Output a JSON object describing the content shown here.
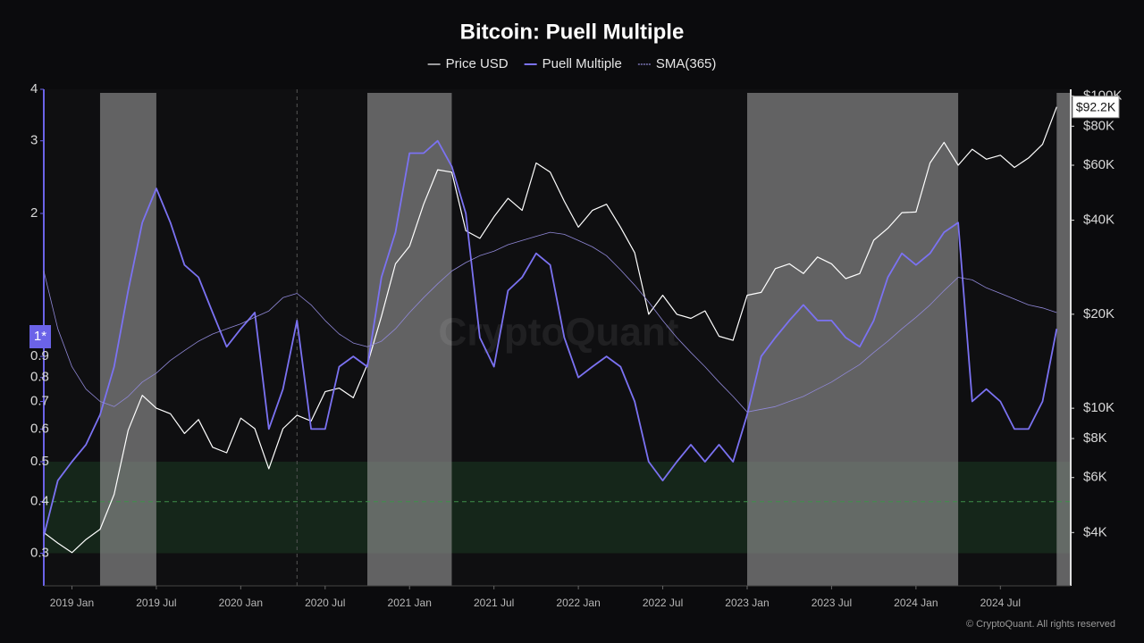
{
  "chart_data": {
    "type": "line",
    "title": "Bitcoin: Puell Multiple",
    "watermark": "CryptoQuant",
    "copyright": "© CryptoQuant. All rights reserved",
    "x": [
      "2018-11",
      "2018-12",
      "2019-01",
      "2019-02",
      "2019-03",
      "2019-04",
      "2019-05",
      "2019-06",
      "2019-07",
      "2019-08",
      "2019-09",
      "2019-10",
      "2019-11",
      "2019-12",
      "2020-01",
      "2020-02",
      "2020-03",
      "2020-04",
      "2020-05",
      "2020-06",
      "2020-07",
      "2020-08",
      "2020-09",
      "2020-10",
      "2020-11",
      "2020-12",
      "2021-01",
      "2021-02",
      "2021-03",
      "2021-04",
      "2021-05",
      "2021-06",
      "2021-07",
      "2021-08",
      "2021-09",
      "2021-10",
      "2021-11",
      "2021-12",
      "2022-01",
      "2022-02",
      "2022-03",
      "2022-04",
      "2022-05",
      "2022-06",
      "2022-07",
      "2022-08",
      "2022-09",
      "2022-10",
      "2022-11",
      "2022-12",
      "2023-01",
      "2023-02",
      "2023-03",
      "2023-04",
      "2023-05",
      "2023-06",
      "2023-07",
      "2023-08",
      "2023-09",
      "2023-10",
      "2023-11",
      "2023-12",
      "2024-01",
      "2024-02",
      "2024-03",
      "2024-04",
      "2024-05",
      "2024-06",
      "2024-07",
      "2024-08",
      "2024-09",
      "2024-10",
      "2024-11"
    ],
    "xlim": [
      "2018-11",
      "2024-12"
    ],
    "xticks": [
      {
        "value": "2019-01",
        "label": "2019 Jan"
      },
      {
        "value": "2019-07",
        "label": "2019 Jul"
      },
      {
        "value": "2020-01",
        "label": "2020 Jan"
      },
      {
        "value": "2020-07",
        "label": "2020 Jul"
      },
      {
        "value": "2021-01",
        "label": "2021 Jan"
      },
      {
        "value": "2021-07",
        "label": "2021 Jul"
      },
      {
        "value": "2022-01",
        "label": "2022 Jan"
      },
      {
        "value": "2022-07",
        "label": "2022 Jul"
      },
      {
        "value": "2023-01",
        "label": "2023 Jan"
      },
      {
        "value": "2023-07",
        "label": "2023 Jul"
      },
      {
        "value": "2024-01",
        "label": "2024 Jan"
      },
      {
        "value": "2024-07",
        "label": "2024 Jul"
      }
    ],
    "ylim": [
      0.25,
      4
    ],
    "yticks": [
      0.3,
      0.4,
      0.5,
      0.6,
      0.7,
      0.8,
      0.9,
      2,
      3,
      4
    ],
    "y_scale": "log",
    "y_marker": {
      "value": 1,
      "label": "1*"
    },
    "y2lim": [
      2700,
      105000
    ],
    "y2_scale": "log",
    "y2ticks": [
      {
        "value": 4000,
        "label": "$4K"
      },
      {
        "value": 6000,
        "label": "$6K"
      },
      {
        "value": 8000,
        "label": "$8K"
      },
      {
        "value": 10000,
        "label": "$10K"
      },
      {
        "value": 20000,
        "label": "$20K"
      },
      {
        "value": 40000,
        "label": "$40K"
      },
      {
        "value": 60000,
        "label": "$60K"
      },
      {
        "value": 80000,
        "label": "$80K"
      },
      {
        "value": 100000,
        "label": "$100K"
      }
    ],
    "zone": [
      0.3,
      0.5
    ],
    "zone_line": 0.4,
    "shaded_ranges": [
      [
        "2019-03",
        "2019-07"
      ],
      [
        "2020-10",
        "2021-04"
      ],
      [
        "2023-01",
        "2024-04"
      ],
      [
        "2024-11",
        "2024-12"
      ]
    ],
    "event_lines": [
      "2020-05"
    ],
    "series": [
      {
        "name": "Price USD",
        "color": "#ffffff",
        "axis": "y2",
        "values": [
          4000,
          3700,
          3450,
          3800,
          4100,
          5300,
          8500,
          11000,
          10000,
          9600,
          8300,
          9200,
          7500,
          7200,
          9300,
          8600,
          6400,
          8600,
          9500,
          9100,
          11300,
          11600,
          10800,
          13800,
          19700,
          29000,
          33000,
          45000,
          58000,
          57000,
          37000,
          35000,
          41000,
          47000,
          43000,
          61000,
          57000,
          46000,
          38000,
          43000,
          45000,
          38000,
          31500,
          20000,
          23000,
          20000,
          19400,
          20500,
          17000,
          16500,
          23000,
          23500,
          28000,
          29000,
          27000,
          30500,
          29000,
          26000,
          27000,
          34500,
          37700,
          42300,
          42500,
          61000,
          71000,
          60000,
          67500,
          62700,
          64600,
          59000,
          63300,
          70000,
          92200
        ],
        "value_labels": [
          null,
          null,
          null,
          null,
          null,
          null,
          null,
          null,
          null,
          null,
          null,
          null,
          null,
          null,
          null,
          null,
          null,
          null,
          null,
          null,
          null,
          null,
          null,
          null,
          null,
          null,
          null,
          null,
          null,
          null,
          null,
          null,
          null,
          null,
          null,
          null,
          null,
          null,
          null,
          null,
          null,
          null,
          null,
          null,
          null,
          null,
          null,
          null,
          null,
          null,
          null,
          null,
          null,
          null,
          null,
          null,
          null,
          null,
          null,
          null,
          null,
          null,
          null,
          null,
          null,
          null,
          null,
          null,
          null,
          null,
          null,
          null,
          "$92.2K"
        ]
      },
      {
        "name": "Puell Multiple",
        "color": "#7b72f2",
        "values": [
          0.33,
          0.45,
          0.5,
          0.55,
          0.65,
          0.85,
          1.3,
          1.9,
          2.3,
          1.9,
          1.5,
          1.4,
          1.15,
          0.95,
          1.05,
          1.15,
          0.6,
          0.75,
          1.1,
          0.6,
          0.6,
          0.85,
          0.9,
          0.85,
          1.4,
          1.8,
          2.8,
          2.8,
          3.0,
          2.6,
          2.0,
          1.0,
          0.85,
          1.3,
          1.4,
          1.6,
          1.5,
          1.0,
          0.8,
          0.85,
          0.9,
          0.85,
          0.7,
          0.5,
          0.45,
          0.5,
          0.55,
          0.5,
          0.55,
          0.5,
          0.65,
          0.9,
          1.0,
          1.1,
          1.2,
          1.1,
          1.1,
          1.0,
          0.95,
          1.1,
          1.4,
          1.6,
          1.5,
          1.6,
          1.8,
          1.9,
          0.7,
          0.75,
          0.7,
          0.6,
          0.6,
          0.7,
          1.05
        ]
      },
      {
        "name": "SMA(365)",
        "color": "#9088d8",
        "values": [
          1.45,
          1.05,
          0.85,
          0.75,
          0.7,
          0.68,
          0.72,
          0.78,
          0.82,
          0.88,
          0.93,
          0.98,
          1.02,
          1.05,
          1.08,
          1.12,
          1.16,
          1.25,
          1.28,
          1.2,
          1.1,
          1.02,
          0.97,
          0.95,
          0.98,
          1.05,
          1.15,
          1.25,
          1.35,
          1.45,
          1.52,
          1.58,
          1.62,
          1.68,
          1.72,
          1.76,
          1.8,
          1.78,
          1.72,
          1.66,
          1.58,
          1.46,
          1.34,
          1.22,
          1.1,
          1.0,
          0.92,
          0.85,
          0.78,
          0.72,
          0.66,
          0.67,
          0.68,
          0.7,
          0.72,
          0.75,
          0.78,
          0.82,
          0.86,
          0.92,
          0.98,
          1.05,
          1.12,
          1.2,
          1.3,
          1.4,
          1.38,
          1.32,
          1.28,
          1.24,
          1.2,
          1.18,
          1.15
        ]
      }
    ]
  }
}
